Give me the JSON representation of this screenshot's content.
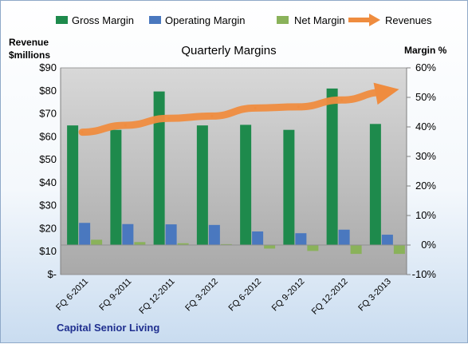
{
  "chart_data": {
    "type": "bar",
    "title": "Quarterly Margins",
    "y_left_label_line1": "Revenue",
    "y_left_label_line2": "$millions",
    "y_right_label": "Margin %",
    "left_axis": {
      "min": 0,
      "max": 90,
      "step": 10,
      "ticks": [
        "$-",
        "$10",
        "$20",
        "$30",
        "$40",
        "$50",
        "$60",
        "$70",
        "$80",
        "$90"
      ]
    },
    "right_axis": {
      "min": -10,
      "max": 60,
      "step": 10,
      "ticks": [
        "-10%",
        "0%",
        "10%",
        "20%",
        "30%",
        "40%",
        "50%",
        "60%"
      ]
    },
    "categories": [
      "FQ 6-2011",
      "FQ 9-2011",
      "FQ 12-2011",
      "FQ 3-2012",
      "FQ 6-2012",
      "FQ 9-2012",
      "FQ 12-2012",
      "FQ 3-2013"
    ],
    "series": [
      {
        "name": "Gross Margin",
        "axis": "right",
        "color": "#1e8a4c",
        "values": [
          40.5,
          39.0,
          52.0,
          40.5,
          40.7,
          39.0,
          53.0,
          41.0
        ]
      },
      {
        "name": "Operating Margin",
        "axis": "right",
        "color": "#4a78bf",
        "values": [
          7.5,
          7.1,
          7.0,
          6.8,
          4.6,
          4.0,
          5.2,
          3.5
        ]
      },
      {
        "name": "Net Margin",
        "axis": "right",
        "color": "#8ab25a",
        "values": [
          1.8,
          1.0,
          0.6,
          0.3,
          -1.2,
          -2.0,
          -3.0,
          -3.0
        ]
      },
      {
        "name": "Revenues",
        "axis": "left",
        "color": "#ef8c3f",
        "type": "line-arrow",
        "values": [
          62,
          65,
          68,
          69,
          72.5,
          73,
          76,
          79.5
        ]
      }
    ],
    "legend_position": "top",
    "grid": false
  },
  "footer": {
    "company": "Capital Senior Living"
  }
}
